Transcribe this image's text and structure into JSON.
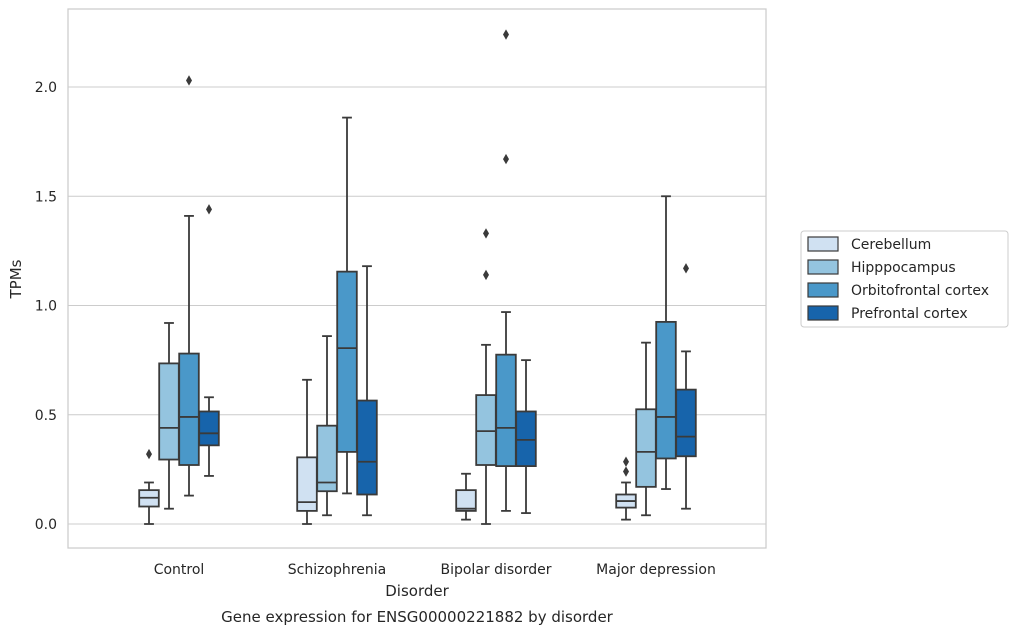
{
  "chart_data": {
    "type": "box",
    "xlabel": "Disorder",
    "ylabel": "TPMs",
    "caption": "Gene expression for ENSG00000221882 by disorder",
    "ylim": [
      -0.11,
      2.37
    ],
    "yticks": [
      0.0,
      0.5,
      1.0,
      1.5,
      2.0
    ],
    "ytick_labels": [
      "0.0",
      "0.5",
      "1.0",
      "1.5",
      "2.0"
    ],
    "grid": "horizontal",
    "legend_position": "right",
    "categories": [
      "Control",
      "Schizophrenia",
      "Bipolar disorder",
      "Major depression"
    ],
    "series": [
      {
        "name": "Cerebellum",
        "color": "#d0e1f2",
        "boxes": [
          {
            "whislo": 0.0,
            "q1": 0.08,
            "med": 0.12,
            "q3": 0.155,
            "whishi": 0.19,
            "fliers": [
              0.32
            ]
          },
          {
            "whislo": 0.0,
            "q1": 0.06,
            "med": 0.1,
            "q3": 0.305,
            "whishi": 0.66,
            "fliers": []
          },
          {
            "whislo": 0.02,
            "q1": 0.06,
            "med": 0.07,
            "q3": 0.155,
            "whishi": 0.23,
            "fliers": []
          },
          {
            "whislo": 0.02,
            "q1": 0.075,
            "med": 0.105,
            "q3": 0.135,
            "whishi": 0.19,
            "fliers": [
              0.24,
              0.285
            ]
          }
        ]
      },
      {
        "name": "Hipppocampus",
        "color": "#94c4df",
        "boxes": [
          {
            "whislo": 0.07,
            "q1": 0.295,
            "med": 0.44,
            "q3": 0.735,
            "whishi": 0.92,
            "fliers": []
          },
          {
            "whislo": 0.04,
            "q1": 0.15,
            "med": 0.19,
            "q3": 0.45,
            "whishi": 0.86,
            "fliers": []
          },
          {
            "whislo": 0.0,
            "q1": 0.27,
            "med": 0.425,
            "q3": 0.59,
            "whishi": 0.82,
            "fliers": [
              1.14,
              1.33
            ]
          },
          {
            "whislo": 0.04,
            "q1": 0.17,
            "med": 0.33,
            "q3": 0.525,
            "whishi": 0.83,
            "fliers": []
          }
        ]
      },
      {
        "name": "Orbitofrontal cortex",
        "color": "#4a98c9",
        "boxes": [
          {
            "whislo": 0.13,
            "q1": 0.27,
            "med": 0.49,
            "q3": 0.78,
            "whishi": 1.41,
            "fliers": [
              2.03
            ]
          },
          {
            "whislo": 0.14,
            "q1": 0.33,
            "med": 0.805,
            "q3": 1.155,
            "whishi": 1.86,
            "fliers": []
          },
          {
            "whislo": 0.06,
            "q1": 0.265,
            "med": 0.44,
            "q3": 0.775,
            "whishi": 0.97,
            "fliers": [
              1.67,
              2.24
            ]
          },
          {
            "whislo": 0.16,
            "q1": 0.3,
            "med": 0.49,
            "q3": 0.925,
            "whishi": 1.5,
            "fliers": []
          }
        ]
      },
      {
        "name": "Prefrontal cortex",
        "color": "#1764ab",
        "boxes": [
          {
            "whislo": 0.22,
            "q1": 0.36,
            "med": 0.415,
            "q3": 0.515,
            "whishi": 0.58,
            "fliers": [
              1.44
            ]
          },
          {
            "whislo": 0.04,
            "q1": 0.135,
            "med": 0.285,
            "q3": 0.565,
            "whishi": 1.18,
            "fliers": []
          },
          {
            "whislo": 0.05,
            "q1": 0.265,
            "med": 0.385,
            "q3": 0.515,
            "whishi": 0.75,
            "fliers": []
          },
          {
            "whislo": 0.07,
            "q1": 0.31,
            "med": 0.4,
            "q3": 0.615,
            "whishi": 0.79,
            "fliers": [
              1.17
            ]
          }
        ]
      }
    ]
  }
}
